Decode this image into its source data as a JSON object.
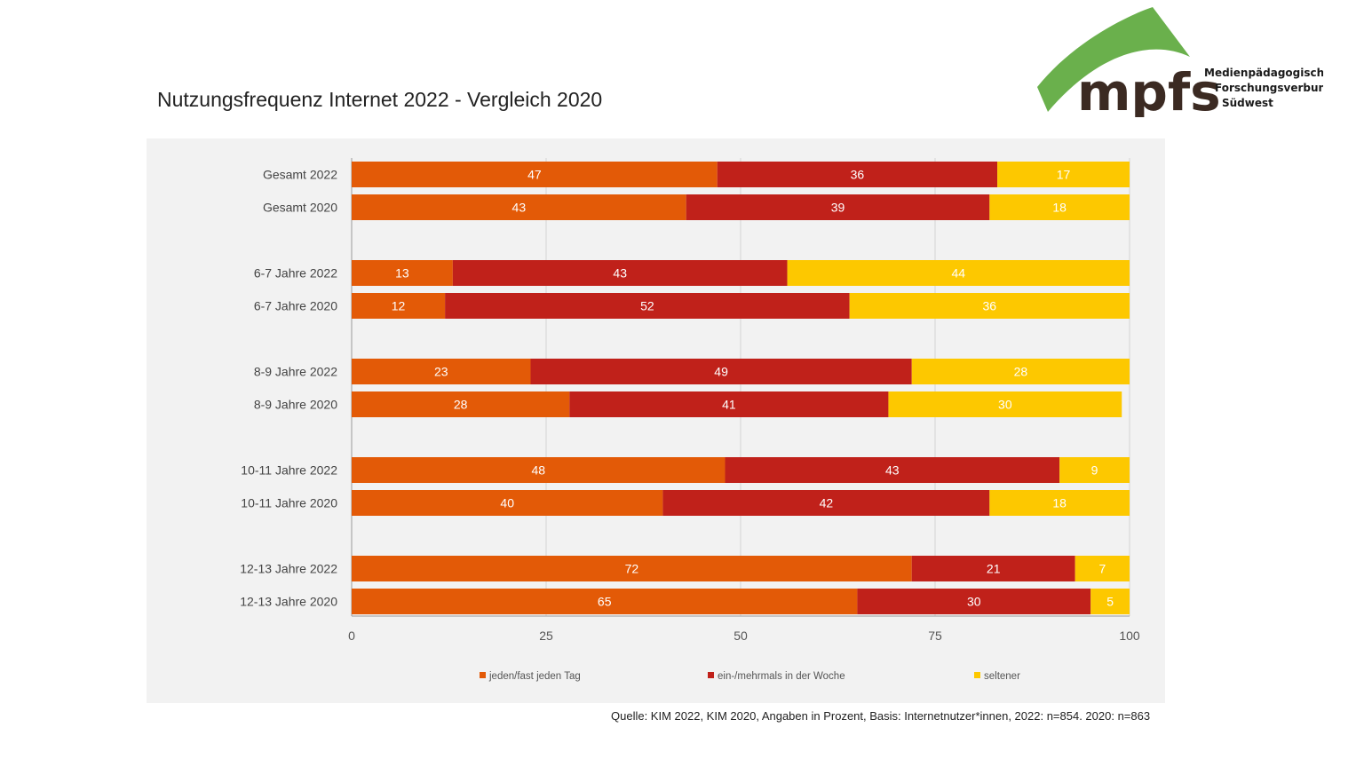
{
  "title": "Nutzungsfrequenz Internet 2022 - Vergleich 2020",
  "source": "Quelle: KIM 2022, KIM 2020, Angaben in Prozent, Basis: Internetnutzer*innen, 2022: n=854. 2020: n=863",
  "logo": {
    "wordmark": "mpfs",
    "lines": [
      "Medienpädagogischer",
      "Forschungsverbund",
      "Südwest"
    ],
    "colors": {
      "arc": "#6ab04c",
      "text": "#3b2a22"
    }
  },
  "chart_data": {
    "type": "bar",
    "orientation": "horizontal",
    "stacked": true,
    "categories": [
      "Gesamt 2022",
      "Gesamt 2020",
      "6-7 Jahre 2022",
      "6-7 Jahre 2020",
      "8-9 Jahre 2022",
      "8-9 Jahre 2020",
      "10-11 Jahre 2022",
      "10-11 Jahre 2020",
      "12-13 Jahre 2022",
      "12-13 Jahre 2020"
    ],
    "series": [
      {
        "name": "jeden/fast jeden Tag",
        "color": "#e35a07",
        "values": [
          47,
          43,
          13,
          12,
          23,
          28,
          48,
          40,
          72,
          65
        ]
      },
      {
        "name": "ein-/mehrmals in der Woche",
        "color": "#c0211a",
        "values": [
          36,
          39,
          43,
          52,
          49,
          41,
          43,
          42,
          21,
          30
        ]
      },
      {
        "name": "seltener",
        "color": "#fdc800",
        "values": [
          17,
          18,
          44,
          36,
          28,
          30,
          9,
          18,
          7,
          5
        ]
      }
    ],
    "xlim": [
      0,
      100
    ],
    "xticks": [
      0,
      25,
      50,
      75,
      100
    ],
    "grid": true,
    "legend_position": "bottom"
  }
}
